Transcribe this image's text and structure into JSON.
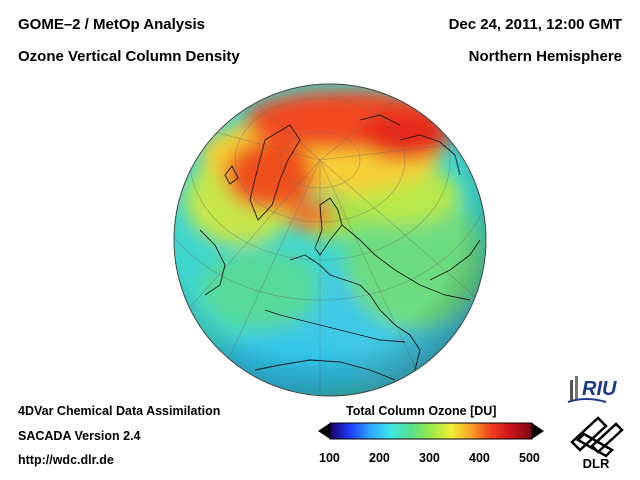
{
  "header": {
    "title_line1": "GOME–2 / MetOp Analysis",
    "title_line2": "Ozone Vertical Column Density",
    "date": "Dec 24, 2011, 12:00 GMT",
    "region": "Northern Hemisphere"
  },
  "footer": {
    "line1": "4DVar Chemical Data Assimilation",
    "line2": "SACADA Version 2.4",
    "line3": "http://wdc.dlr.de"
  },
  "colorbar": {
    "title": "Total Column Ozone [DU]",
    "ticks": [
      "100",
      "200",
      "300",
      "400",
      "500"
    ],
    "colors": [
      "#1a0066",
      "#1f3cff",
      "#2aa8ff",
      "#3fe6e6",
      "#55e08a",
      "#9be84a",
      "#f0f035",
      "#f8a028",
      "#f23a1e",
      "#c8121a",
      "#7a0a10"
    ]
  },
  "logos": {
    "riu": "RIU",
    "dlr": "DLR"
  },
  "map": {
    "projection": "orthographic",
    "hemisphere": "Northern Hemisphere"
  }
}
